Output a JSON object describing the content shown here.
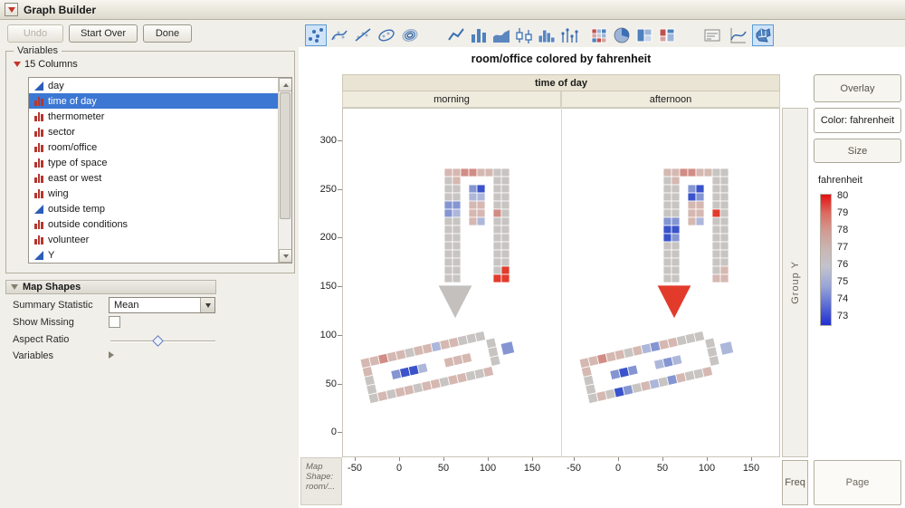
{
  "window": {
    "title": "Graph Builder"
  },
  "toolbar": {
    "undo": "Undo",
    "start_over": "Start Over",
    "done": "Done"
  },
  "variables_panel": {
    "title": "Variables",
    "columns_label": "15 Columns",
    "items": [
      {
        "label": "day",
        "type": "continuous",
        "selected": false
      },
      {
        "label": "time of day",
        "type": "nominal",
        "selected": true
      },
      {
        "label": "thermometer",
        "type": "nominal",
        "selected": false
      },
      {
        "label": "sector",
        "type": "nominal",
        "selected": false
      },
      {
        "label": "room/office",
        "type": "nominal",
        "selected": false
      },
      {
        "label": "type of space",
        "type": "nominal",
        "selected": false
      },
      {
        "label": "east or west",
        "type": "nominal",
        "selected": false
      },
      {
        "label": "wing",
        "type": "nominal",
        "selected": false
      },
      {
        "label": "outside temp",
        "type": "continuous",
        "selected": false
      },
      {
        "label": "outside conditions",
        "type": "nominal",
        "selected": false
      },
      {
        "label": "volunteer",
        "type": "nominal",
        "selected": false
      },
      {
        "label": "Y",
        "type": "continuous",
        "selected": false
      }
    ]
  },
  "map_shapes_panel": {
    "title": "Map Shapes",
    "summary_statistic_label": "Summary Statistic",
    "summary_statistic_value": "Mean",
    "show_missing_label": "Show Missing",
    "show_missing_checked": false,
    "aspect_ratio_label": "Aspect Ratio",
    "variables_label": "Variables"
  },
  "chart": {
    "title": "room/office colored by fahrenheit",
    "group_x_header": "time of day",
    "panels": [
      "morning",
      "afternoon"
    ],
    "y_ticks": [
      "300",
      "250",
      "200",
      "150",
      "100",
      "50",
      "0"
    ],
    "x_ticks": [
      "-50",
      "0",
      "50",
      "100",
      "150"
    ],
    "group_y_label": "Group Y",
    "freq_label": "Freq",
    "page_label": "Page",
    "map_shape_zone": [
      "Map",
      "Shape:",
      "room/..."
    ]
  },
  "right_panel": {
    "overlay_label": "Overlay",
    "color_label": "Color: fahrenheit",
    "size_label": "Size",
    "legend_title": "fahrenheit",
    "legend_values": [
      "80",
      "79",
      "78",
      "77",
      "76",
      "75",
      "74",
      "73"
    ],
    "legend_top_color": "#e41010",
    "legend_bottom_color": "#1f2ed2"
  },
  "map": {
    "palette": {
      "g": "#c7c4c2",
      "p": "#d5b8b1",
      "r": "#d18d85",
      "R": "#e23b2c",
      "l": "#adb7da",
      "b": "#8495d2",
      "B": "#3a53cb"
    },
    "upper": {
      "morning": [
        "pprrppgg",
        "gp....gg",
        "gg.bB.gg",
        "gg.ll.gg",
        "bb.pp.gg",
        "bl.pp.rg",
        "gg.pl.gg",
        "gg....gg",
        "gg....gg",
        "gg....gg",
        "gg....gg",
        "gg....gg",
        "gg....gR",
        "gg....RR"
      ],
      "afternoon": [
        "pprrppgg",
        "gp....gg",
        "gg.bB.gg",
        "gg.Bb.gg",
        "gg.pp.gg",
        "gg.pp.Rg",
        "bb.pl.gg",
        "BB....gg",
        "Bb....gg",
        "gg....gg",
        "gg....gg",
        "gg....gg",
        "gg....gp",
        "gg....pp"
      ]
    },
    "funnel": {
      "morning": "#c3c0bd",
      "afternoon": "#e23b2c"
    },
    "lower": {
      "morning": [
        "pprppgpplppggg.",
        "p.............g",
        "g..bBBl..ppp..g",
        "g.............g",
        "gpgppgppgppggp."
      ],
      "afternoon": [
        "pprppgplbppggg.",
        "p.............g",
        "g..bBb..lbl...g",
        "g.............g",
        "gpgBbgplgbpggp."
      ]
    },
    "annex": {
      "morning": "#8495d2",
      "afternoon": "#adb7da"
    }
  }
}
